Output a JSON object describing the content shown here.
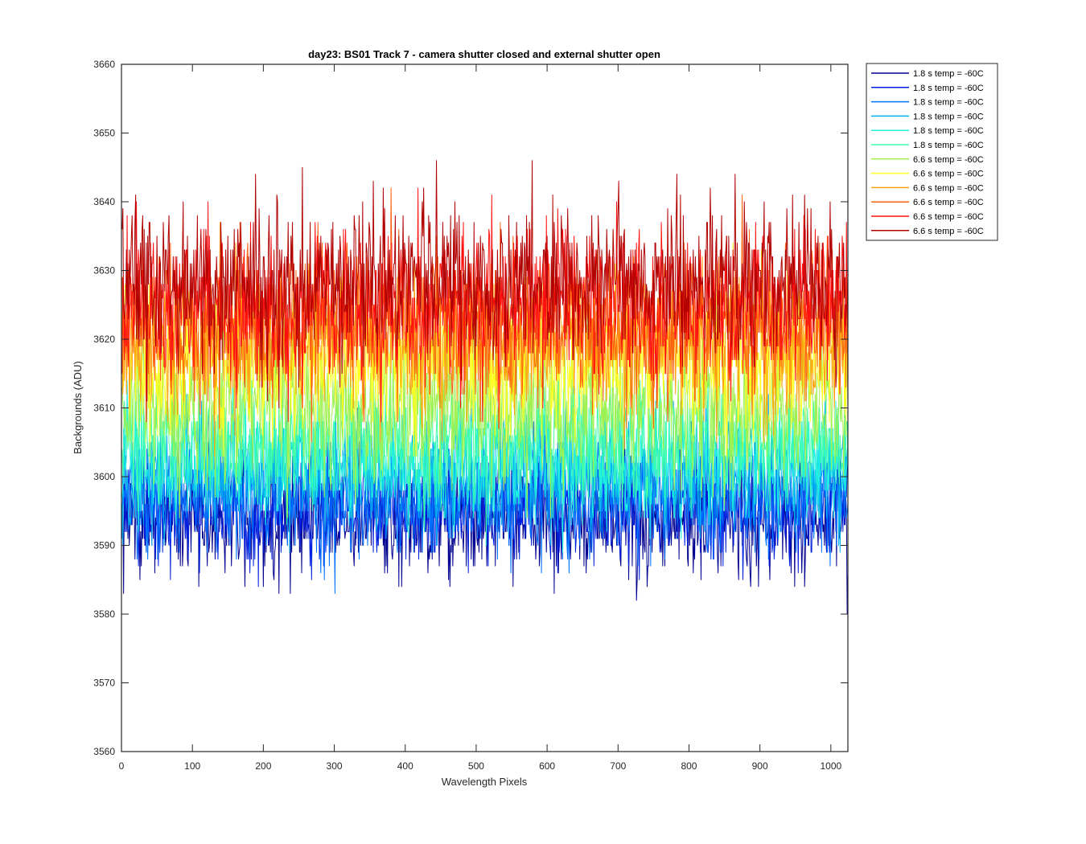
{
  "chart_data": {
    "type": "line",
    "title": "day23: BS01  Track 7 - camera shutter closed and external shutter open",
    "xlabel": "Wavelength Pixels",
    "ylabel": "Backgrounds (ADU)",
    "xlim": [
      0,
      1024
    ],
    "ylim": [
      3560,
      3660
    ],
    "xticks": [
      0,
      100,
      200,
      300,
      400,
      500,
      600,
      700,
      800,
      900,
      1000
    ],
    "yticks": [
      3560,
      3570,
      3580,
      3590,
      3600,
      3610,
      3620,
      3630,
      3640,
      3650,
      3660
    ],
    "grid": false,
    "legend_position": "outside top-right",
    "x": {
      "start": 1,
      "end": 1024,
      "step": 1
    },
    "series": [
      {
        "name": "1.8 s temp = -60C",
        "color": "#00008f",
        "mean": 3594,
        "noise_sd": 4.2
      },
      {
        "name": "1.8 s temp = -60C",
        "color": "#0020df",
        "mean": 3596,
        "noise_sd": 4.2
      },
      {
        "name": "1.8 s temp = -60C",
        "color": "#0070ff",
        "mean": 3597,
        "noise_sd": 4.2
      },
      {
        "name": "1.8 s temp = -60C",
        "color": "#00b0f0",
        "mean": 3601,
        "noise_sd": 4.2
      },
      {
        "name": "1.8 s temp = -60C",
        "color": "#20f0e0",
        "mean": 3602,
        "noise_sd": 4.2
      },
      {
        "name": "1.8 s temp = -60C",
        "color": "#40ffa8",
        "mean": 3605,
        "noise_sd": 4.2
      },
      {
        "name": "6.6 s temp = -60C",
        "color": "#a0f050",
        "mean": 3610,
        "noise_sd": 5.5
      },
      {
        "name": "6.6 s temp = -60C",
        "color": "#ffff20",
        "mean": 3617,
        "noise_sd": 5.5
      },
      {
        "name": "6.6 s temp = -60C",
        "color": "#ffa010",
        "mean": 3620,
        "noise_sd": 5.5
      },
      {
        "name": "6.6 s temp = -60C",
        "color": "#ff6010",
        "mean": 3622,
        "noise_sd": 5.5
      },
      {
        "name": "6.6 s temp = -60C",
        "color": "#ff1010",
        "mean": 3625,
        "noise_sd": 5.5
      },
      {
        "name": "6.6 s temp = -60C",
        "color": "#b00000",
        "mean": 3628,
        "noise_sd": 5.5
      }
    ]
  }
}
